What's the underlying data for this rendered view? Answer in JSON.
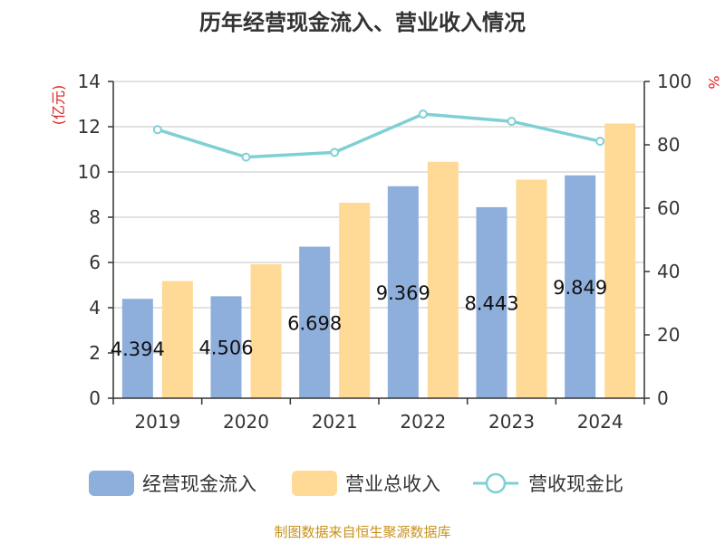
{
  "chart_data": {
    "title": "历年经营现金流入、营业收入情况",
    "type": "bar",
    "categories": [
      "2019",
      "2020",
      "2021",
      "2022",
      "2023",
      "2024"
    ],
    "y_left": {
      "unit": "(亿元)",
      "min": 0,
      "max": 14,
      "ticks": [
        0,
        2,
        4,
        6,
        8,
        10,
        12,
        14
      ]
    },
    "y_right": {
      "unit": "%",
      "min": 0,
      "max": 100,
      "ticks": [
        0,
        20,
        40,
        60,
        80,
        100
      ]
    },
    "grid": true,
    "series": [
      {
        "name": "经营现金流入",
        "type": "bar",
        "axis": "left",
        "color": "#8eaedb",
        "values": [
          4.394,
          4.506,
          6.698,
          9.369,
          8.443,
          9.849
        ],
        "labels": [
          "4.394",
          "4.506",
          "6.698",
          "9.369",
          "8.443",
          "9.849"
        ]
      },
      {
        "name": "营业总收入",
        "type": "bar",
        "axis": "left",
        "color": "#ffd996",
        "values": [
          5.18,
          5.92,
          8.64,
          10.45,
          9.66,
          12.14
        ]
      },
      {
        "name": "营收现金比",
        "type": "line",
        "axis": "right",
        "color": "#7fd0d4",
        "values": [
          84.8,
          76.1,
          77.6,
          89.7,
          87.4,
          81.1
        ]
      }
    ],
    "legend_position": "bottom"
  },
  "source": "制图数据来自恒生聚源数据库"
}
